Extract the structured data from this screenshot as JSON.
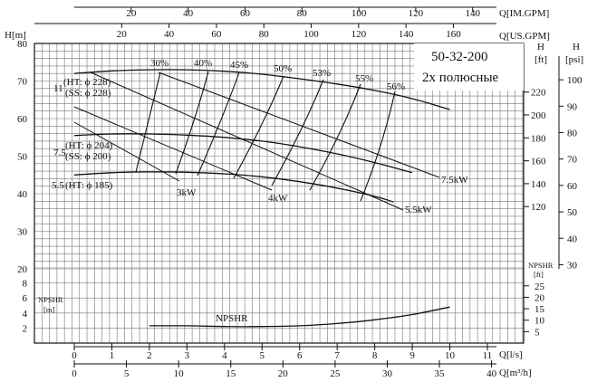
{
  "chart_data": {
    "type": "line",
    "title": "50-32-200",
    "subtitle": "2х  полюсные",
    "axes": {
      "left_h": {
        "label": "H[m]",
        "ticks": [
          20,
          30,
          40,
          50,
          60,
          70,
          80
        ]
      },
      "left_npshr": {
        "label": [
          "NPSHR",
          "[m]"
        ],
        "ticks": [
          2,
          4,
          6,
          8
        ]
      },
      "right_h_ft": {
        "label": [
          "H",
          "[ft]"
        ],
        "ticks": [
          120,
          140,
          160,
          180,
          200,
          220
        ]
      },
      "right_h_psi": {
        "label": [
          "H",
          "[psi]"
        ],
        "ticks": [
          30,
          40,
          50,
          60,
          70,
          80,
          90,
          100
        ]
      },
      "right_npshr_ft": {
        "label": [
          "NPSHR",
          "[ft]"
        ],
        "ticks": [
          5,
          10,
          15,
          20,
          25
        ]
      },
      "bottom_q_ls": {
        "label": "Q[l/s]",
        "ticks": [
          0,
          1,
          2,
          3,
          4,
          5,
          6,
          7,
          8,
          9,
          10,
          11
        ]
      },
      "bottom_q_m3h": {
        "label": "Q[m³/h]",
        "ticks": [
          0,
          5,
          10,
          15,
          20,
          25,
          30,
          35,
          40
        ]
      },
      "top_q_usgpm": {
        "label": "Q[US.GPM]",
        "ticks": [
          20,
          40,
          60,
          80,
          100,
          120,
          140,
          160
        ]
      },
      "top_q_imgpm": {
        "label": "Q[IM.GPM]",
        "ticks": [
          20,
          40,
          60,
          80,
          100,
          120,
          140
        ]
      }
    },
    "series": [
      {
        "name": "11",
        "labels": [
          "(HT: ϕ 228)",
          "(SS: ϕ 228)"
        ],
        "x": [
          0,
          1,
          2,
          3,
          4,
          5,
          6,
          7,
          8,
          9,
          10
        ],
        "y": [
          72.0,
          72.7,
          73.0,
          73.0,
          72.6,
          71.8,
          70.6,
          69.2,
          67.5,
          65.3,
          62.4
        ]
      },
      {
        "name": "7.5",
        "labels": [
          "(HT: ϕ 204)",
          "(SS: ϕ 200)"
        ],
        "x": [
          0,
          1,
          2,
          3,
          4,
          5,
          6,
          7,
          8,
          9
        ],
        "y": [
          55.5,
          55.9,
          55.9,
          55.6,
          55.0,
          54.0,
          52.5,
          50.6,
          48.3,
          45.6
        ]
      },
      {
        "name": "5.5",
        "labels": [
          "(HT: ϕ 185)"
        ],
        "x": [
          0,
          1,
          2,
          3,
          4,
          5,
          6,
          7,
          8,
          8.5
        ],
        "y": [
          45.0,
          45.6,
          45.8,
          45.7,
          45.3,
          44.5,
          43.2,
          41.5,
          39.3,
          37.8
        ]
      }
    ],
    "efficiency_lines": [
      "30%",
      "40%",
      "45%",
      "50%",
      "53%",
      "55%",
      "56%"
    ],
    "power_lines": [
      "3kW",
      "4kW",
      "5.5kW",
      "7.5kW"
    ],
    "npshr": {
      "label": "NPSHR",
      "x": [
        2,
        3,
        4,
        5,
        6,
        7,
        8,
        9,
        10
      ],
      "y": [
        2.3,
        2.3,
        2.2,
        2.2,
        2.3,
        2.6,
        3.1,
        3.8,
        4.8
      ]
    }
  }
}
